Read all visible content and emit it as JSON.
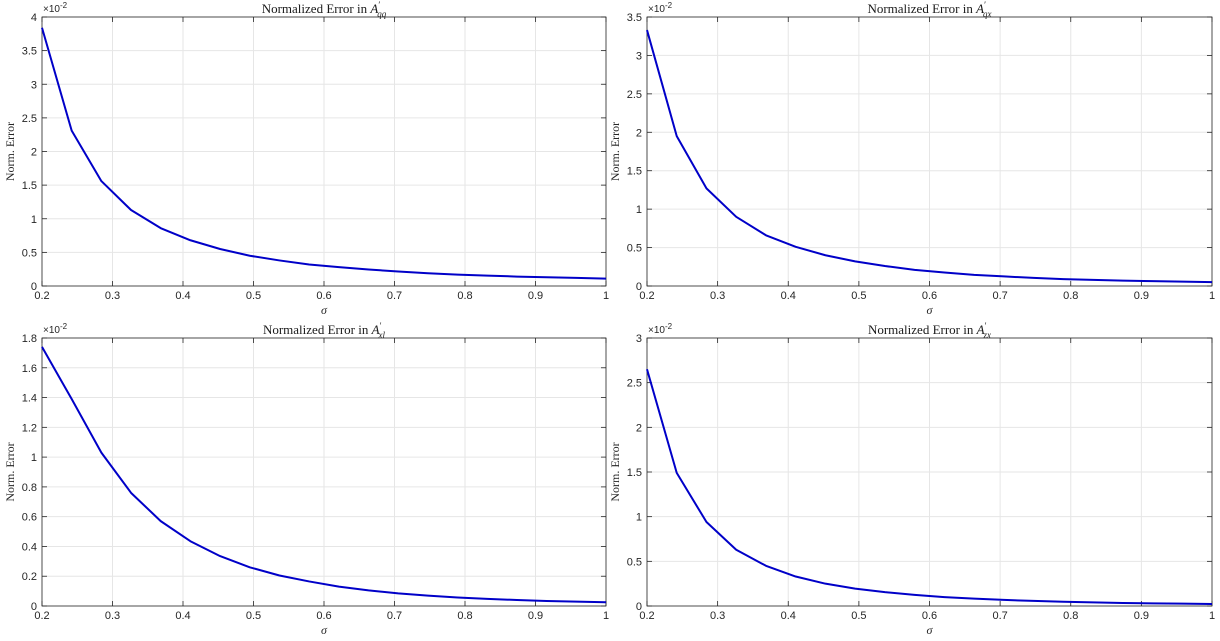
{
  "chart_data": [
    {
      "type": "line",
      "title": {
        "prefix": "Normalized Error in ",
        "symbol": "A",
        "prime": "′",
        "subscript": "qq"
      },
      "xlabel": "σ",
      "ylabel": "Norm. Error",
      "exponent_label": {
        "base": "×10",
        "power": "-2"
      },
      "xlim": [
        0.2,
        1
      ],
      "ylim": [
        0,
        4
      ],
      "xticks": [
        "0.2",
        "0.3",
        "0.4",
        "0.5",
        "0.6",
        "0.7",
        "0.8",
        "0.9",
        "1"
      ],
      "yticks": [
        "0",
        "0.5",
        "1",
        "1.5",
        "2",
        "2.5",
        "3",
        "3.5",
        "4"
      ],
      "grid": true,
      "series": [
        {
          "color": "#0000c8",
          "x": [
            0.2,
            0.2421,
            0.2842,
            0.3263,
            0.3684,
            0.4105,
            0.4526,
            0.4947,
            0.5368,
            0.5789,
            0.6211,
            0.6632,
            0.7053,
            0.7474,
            0.7895,
            0.8316,
            0.8737,
            0.9158,
            0.9579,
            1.0
          ],
          "y": [
            3.84,
            2.31,
            1.56,
            1.13,
            0.86,
            0.68,
            0.55,
            0.45,
            0.38,
            0.32,
            0.28,
            0.245,
            0.215,
            0.19,
            0.17,
            0.155,
            0.14,
            0.13,
            0.12,
            0.11
          ]
        }
      ]
    },
    {
      "type": "line",
      "title": {
        "prefix": "Normalized Error in ",
        "symbol": "A",
        "prime": "′",
        "subscript": "qx"
      },
      "xlabel": "σ",
      "ylabel": "Norm. Error",
      "exponent_label": {
        "base": "×10",
        "power": "-2"
      },
      "xlim": [
        0.2,
        1
      ],
      "ylim": [
        0,
        3.5
      ],
      "xticks": [
        "0.2",
        "0.3",
        "0.4",
        "0.5",
        "0.6",
        "0.7",
        "0.8",
        "0.9",
        "1"
      ],
      "yticks": [
        "0",
        "0.5",
        "1",
        "1.5",
        "2",
        "2.5",
        "3",
        "3.5"
      ],
      "grid": true,
      "series": [
        {
          "color": "#0000c8",
          "x": [
            0.2,
            0.2421,
            0.2842,
            0.3263,
            0.3684,
            0.4105,
            0.4526,
            0.4947,
            0.5368,
            0.5789,
            0.6211,
            0.6632,
            0.7053,
            0.7474,
            0.7895,
            0.8316,
            0.8737,
            0.9158,
            0.9579,
            1.0
          ],
          "y": [
            3.33,
            1.95,
            1.27,
            0.9,
            0.66,
            0.51,
            0.4,
            0.32,
            0.26,
            0.21,
            0.175,
            0.145,
            0.125,
            0.105,
            0.09,
            0.08,
            0.07,
            0.063,
            0.057,
            0.05
          ]
        }
      ]
    },
    {
      "type": "line",
      "title": {
        "prefix": "Normalized Error in ",
        "symbol": "A",
        "prime": "′",
        "subscript": "xl"
      },
      "xlabel": "σ",
      "ylabel": "Norm. Error",
      "exponent_label": {
        "base": "×10",
        "power": "-2"
      },
      "xlim": [
        0.2,
        1
      ],
      "ylim": [
        0,
        1.8
      ],
      "xticks": [
        "0.2",
        "0.3",
        "0.4",
        "0.5",
        "0.6",
        "0.7",
        "0.8",
        "0.9",
        "1"
      ],
      "yticks": [
        "0",
        "0.2",
        "0.4",
        "0.6",
        "0.8",
        "1",
        "1.2",
        "1.4",
        "1.6",
        "1.8"
      ],
      "grid": true,
      "series": [
        {
          "color": "#0000c8",
          "x": [
            0.2,
            0.2421,
            0.2842,
            0.3263,
            0.3684,
            0.4105,
            0.4526,
            0.4947,
            0.5368,
            0.5789,
            0.6211,
            0.6632,
            0.7053,
            0.7474,
            0.7895,
            0.8316,
            0.8737,
            0.9158,
            0.9579,
            1.0
          ],
          "y": [
            1.74,
            1.39,
            1.03,
            0.76,
            0.57,
            0.435,
            0.335,
            0.26,
            0.205,
            0.165,
            0.13,
            0.105,
            0.085,
            0.07,
            0.057,
            0.048,
            0.04,
            0.034,
            0.029,
            0.025
          ]
        }
      ]
    },
    {
      "type": "line",
      "title": {
        "prefix": "Normalized Error in ",
        "symbol": "A",
        "prime": "′",
        "subscript": "zx"
      },
      "xlabel": "σ",
      "ylabel": "Norm. Error",
      "exponent_label": {
        "base": "×10",
        "power": "-2"
      },
      "xlim": [
        0.2,
        1
      ],
      "ylim": [
        0,
        3
      ],
      "xticks": [
        "0.2",
        "0.3",
        "0.4",
        "0.5",
        "0.6",
        "0.7",
        "0.8",
        "0.9",
        "1"
      ],
      "yticks": [
        "0",
        "0.5",
        "1",
        "1.5",
        "2",
        "2.5",
        "3"
      ],
      "grid": true,
      "series": [
        {
          "color": "#0000c8",
          "x": [
            0.2,
            0.2421,
            0.2842,
            0.3263,
            0.3684,
            0.4105,
            0.4526,
            0.4947,
            0.5368,
            0.5789,
            0.6211,
            0.6632,
            0.7053,
            0.7474,
            0.7895,
            0.8316,
            0.8737,
            0.9158,
            0.9579,
            1.0
          ],
          "y": [
            2.65,
            1.49,
            0.94,
            0.63,
            0.45,
            0.33,
            0.25,
            0.195,
            0.155,
            0.125,
            0.1,
            0.082,
            0.068,
            0.057,
            0.048,
            0.04,
            0.034,
            0.03,
            0.026,
            0.023
          ]
        }
      ]
    }
  ]
}
